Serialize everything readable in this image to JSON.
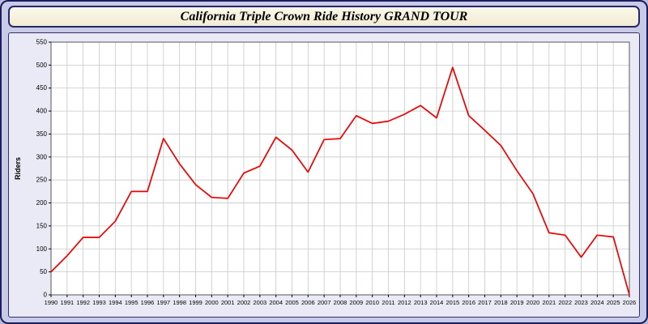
{
  "window": {
    "title": "California Triple Crown Ride History GRAND TOUR"
  },
  "chart_data": {
    "type": "line",
    "title": "California Triple Crown Ride History GRAND TOUR",
    "xlabel": "",
    "ylabel": "Riders",
    "x": [
      1990,
      1991,
      1992,
      1993,
      1994,
      1995,
      1996,
      1997,
      1998,
      1999,
      2000,
      2001,
      2002,
      2003,
      2004,
      2005,
      2006,
      2007,
      2008,
      2009,
      2010,
      2011,
      2012,
      2013,
      2014,
      2015,
      2016,
      2017,
      2018,
      2019,
      2020,
      2021,
      2022,
      2023,
      2024,
      2025,
      2026
    ],
    "series": [
      {
        "name": "Riders",
        "color": "#ee0000",
        "values": [
          50,
          85,
          125,
          125,
          160,
          225,
          225,
          340,
          285,
          240,
          212,
          210,
          265,
          280,
          343,
          315,
          267,
          338,
          340,
          390,
          373,
          378,
          393,
          412,
          385,
          495,
          390,
          358,
          325,
          270,
          220,
          135,
          130,
          82,
          130,
          126,
          0
        ]
      }
    ],
    "ylim": [
      0,
      550
    ],
    "ytick_step": 50,
    "grid": true,
    "legend": "none",
    "colors": {
      "plot_background": "#ffffff",
      "panel_background": "#eaeaf6",
      "page_background": "#c9c9e8",
      "grid_line": "#c8c8c8",
      "axis_frame": "#555555",
      "tick_text": "#000000"
    }
  }
}
